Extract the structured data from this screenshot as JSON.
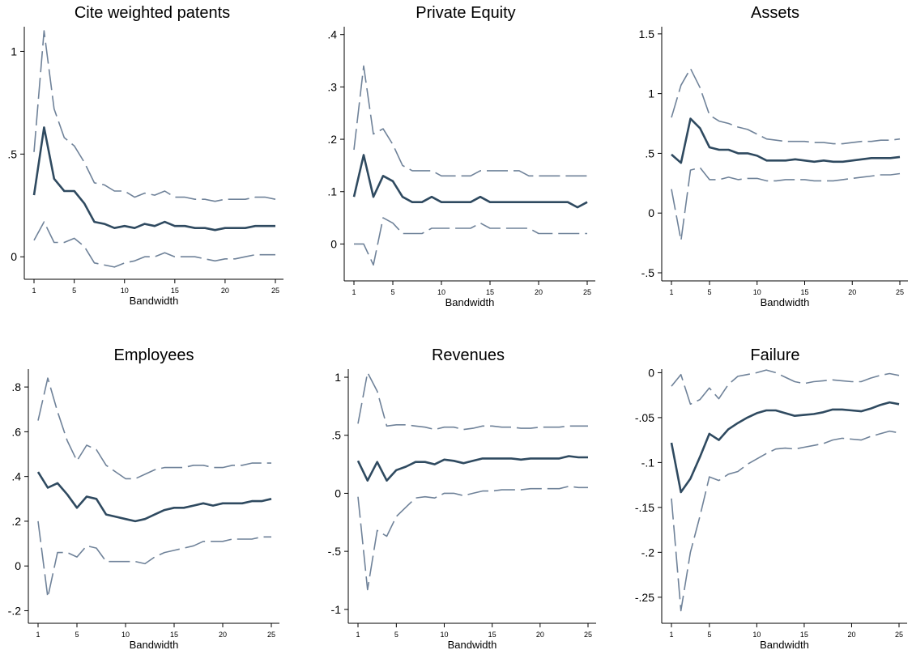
{
  "colors": {
    "estimate": "#2f4a60",
    "ci": "#6f8299",
    "axis": "#000000"
  },
  "chart_data": [
    {
      "type": "line",
      "title": "Cite weighted patents",
      "xlabel": "Bandwidth",
      "ylabel": "",
      "xlim": [
        1,
        25
      ],
      "xticks": [
        "1",
        "5",
        "10",
        "15",
        "20",
        "25"
      ],
      "ylim": [
        -0.07,
        1.12
      ],
      "yticks": [
        {
          "v": 0,
          "label": "0"
        },
        {
          "v": 0.5,
          "label": ".5"
        },
        {
          "v": 1,
          "label": "1"
        }
      ],
      "x": [
        1,
        2,
        3,
        4,
        5,
        6,
        7,
        8,
        9,
        10,
        11,
        12,
        13,
        14,
        15,
        16,
        17,
        18,
        19,
        20,
        21,
        22,
        23,
        24,
        25
      ],
      "series": [
        {
          "role": "upper",
          "values": [
            0.51,
            1.1,
            0.72,
            0.58,
            0.54,
            0.46,
            0.36,
            0.35,
            0.32,
            0.32,
            0.29,
            0.31,
            0.3,
            0.32,
            0.29,
            0.29,
            0.28,
            0.28,
            0.27,
            0.28,
            0.28,
            0.28,
            0.29,
            0.29,
            0.28
          ]
        },
        {
          "role": "estimate",
          "values": [
            0.3,
            0.63,
            0.38,
            0.32,
            0.32,
            0.26,
            0.17,
            0.16,
            0.14,
            0.15,
            0.14,
            0.16,
            0.15,
            0.17,
            0.15,
            0.15,
            0.14,
            0.14,
            0.13,
            0.14,
            0.14,
            0.14,
            0.15,
            0.15,
            0.15
          ]
        },
        {
          "role": "lower",
          "values": [
            0.08,
            0.17,
            0.07,
            0.07,
            0.09,
            0.05,
            -0.03,
            -0.04,
            -0.05,
            -0.03,
            -0.02,
            0,
            0,
            0.02,
            0,
            0,
            0,
            -0.01,
            -0.02,
            -0.01,
            -0.01,
            0,
            0.01,
            0.01,
            0.01
          ]
        }
      ]
    },
    {
      "type": "line",
      "title": "Private Equity",
      "xlabel": "Bandwidth",
      "ylabel": "",
      "xlim": [
        1,
        25
      ],
      "xticks": [
        "1",
        "5",
        "10",
        "15",
        "20",
        "25"
      ],
      "ylim": [
        -0.055,
        0.415
      ],
      "yticks": [
        {
          "v": 0,
          "label": "0"
        },
        {
          "v": 0.1,
          "label": ".1"
        },
        {
          "v": 0.2,
          "label": ".2"
        },
        {
          "v": 0.3,
          "label": ".3"
        },
        {
          "v": 0.4,
          "label": ".4"
        }
      ],
      "x": [
        1,
        2,
        3,
        4,
        5,
        6,
        7,
        8,
        9,
        10,
        11,
        12,
        13,
        14,
        15,
        16,
        17,
        18,
        19,
        20,
        21,
        22,
        23,
        24,
        25
      ],
      "series": [
        {
          "role": "upper",
          "values": [
            0.18,
            0.34,
            0.21,
            0.22,
            0.19,
            0.15,
            0.14,
            0.14,
            0.14,
            0.13,
            0.13,
            0.13,
            0.13,
            0.14,
            0.14,
            0.14,
            0.14,
            0.14,
            0.13,
            0.13,
            0.13,
            0.13,
            0.13,
            0.13,
            0.13
          ]
        },
        {
          "role": "estimate",
          "values": [
            0.09,
            0.17,
            0.09,
            0.13,
            0.12,
            0.09,
            0.08,
            0.08,
            0.09,
            0.08,
            0.08,
            0.08,
            0.08,
            0.09,
            0.08,
            0.08,
            0.08,
            0.08,
            0.08,
            0.08,
            0.08,
            0.08,
            0.08,
            0.07,
            0.08
          ]
        },
        {
          "role": "lower",
          "values": [
            0,
            0,
            -0.04,
            0.05,
            0.04,
            0.02,
            0.02,
            0.02,
            0.03,
            0.03,
            0.03,
            0.03,
            0.03,
            0.04,
            0.03,
            0.03,
            0.03,
            0.03,
            0.03,
            0.02,
            0.02,
            0.02,
            0.02,
            0.02,
            0.02
          ]
        }
      ]
    },
    {
      "type": "line",
      "title": "Assets",
      "xlabel": "Bandwidth",
      "ylabel": "",
      "xlim": [
        1,
        25
      ],
      "xticks": [
        "1",
        "5",
        "10",
        "15",
        "20",
        "25"
      ],
      "ylim": [
        -0.5,
        1.56
      ],
      "yticks": [
        {
          "v": -0.5,
          "label": "-.5"
        },
        {
          "v": 0,
          "label": "0"
        },
        {
          "v": 0.5,
          "label": ".5"
        },
        {
          "v": 1,
          "label": "1"
        },
        {
          "v": 1.5,
          "label": "1.5"
        }
      ],
      "x": [
        1,
        2,
        3,
        4,
        5,
        6,
        7,
        8,
        9,
        10,
        11,
        12,
        13,
        14,
        15,
        16,
        17,
        18,
        19,
        20,
        21,
        22,
        23,
        24,
        25
      ],
      "series": [
        {
          "role": "upper",
          "values": [
            0.8,
            1.07,
            1.21,
            1.05,
            0.82,
            0.77,
            0.75,
            0.72,
            0.7,
            0.66,
            0.62,
            0.61,
            0.6,
            0.6,
            0.6,
            0.59,
            0.59,
            0.58,
            0.58,
            0.59,
            0.6,
            0.6,
            0.61,
            0.61,
            0.62
          ]
        },
        {
          "role": "estimate",
          "values": [
            0.49,
            0.42,
            0.79,
            0.71,
            0.55,
            0.53,
            0.53,
            0.5,
            0.5,
            0.48,
            0.44,
            0.44,
            0.44,
            0.45,
            0.44,
            0.43,
            0.44,
            0.43,
            0.43,
            0.44,
            0.45,
            0.46,
            0.46,
            0.46,
            0.47
          ]
        },
        {
          "role": "lower",
          "values": [
            0.2,
            -0.23,
            0.36,
            0.38,
            0.28,
            0.28,
            0.3,
            0.28,
            0.29,
            0.29,
            0.27,
            0.27,
            0.28,
            0.28,
            0.28,
            0.27,
            0.27,
            0.27,
            0.28,
            0.29,
            0.3,
            0.31,
            0.32,
            0.32,
            0.33
          ]
        }
      ]
    },
    {
      "type": "line",
      "title": "Employees",
      "xlabel": "Bandwidth",
      "ylabel": "",
      "xlim": [
        1,
        25
      ],
      "xticks": [
        "1",
        "5",
        "10",
        "15",
        "20",
        "25"
      ],
      "ylim": [
        -0.22,
        0.88
      ],
      "yticks": [
        {
          "v": -0.2,
          "label": "-.2"
        },
        {
          "v": 0,
          "label": "0"
        },
        {
          "v": 0.2,
          "label": ".2"
        },
        {
          "v": 0.4,
          "label": ".4"
        },
        {
          "v": 0.6,
          "label": ".6"
        },
        {
          "v": 0.8,
          "label": ".8"
        }
      ],
      "x": [
        1,
        2,
        3,
        4,
        5,
        6,
        7,
        8,
        9,
        10,
        11,
        12,
        13,
        14,
        15,
        16,
        17,
        18,
        19,
        20,
        21,
        22,
        23,
        24,
        25
      ],
      "series": [
        {
          "role": "upper",
          "values": [
            0.65,
            0.84,
            0.69,
            0.56,
            0.47,
            0.54,
            0.52,
            0.45,
            0.42,
            0.39,
            0.39,
            0.41,
            0.43,
            0.44,
            0.44,
            0.44,
            0.45,
            0.45,
            0.44,
            0.44,
            0.45,
            0.45,
            0.46,
            0.46,
            0.46
          ]
        },
        {
          "role": "estimate",
          "values": [
            0.42,
            0.35,
            0.37,
            0.32,
            0.26,
            0.31,
            0.3,
            0.23,
            0.22,
            0.21,
            0.2,
            0.21,
            0.23,
            0.25,
            0.26,
            0.26,
            0.27,
            0.28,
            0.27,
            0.28,
            0.28,
            0.28,
            0.29,
            0.29,
            0.3
          ]
        },
        {
          "role": "lower",
          "values": [
            0.2,
            -0.14,
            0.06,
            0.06,
            0.04,
            0.09,
            0.08,
            0.02,
            0.02,
            0.02,
            0.02,
            0.01,
            0.04,
            0.06,
            0.07,
            0.08,
            0.09,
            0.11,
            0.11,
            0.11,
            0.12,
            0.12,
            0.12,
            0.13,
            0.13
          ]
        }
      ]
    },
    {
      "type": "line",
      "title": "Revenues",
      "xlabel": "Bandwidth",
      "ylabel": "",
      "xlim": [
        1,
        25
      ],
      "xticks": [
        "1",
        "5",
        "10",
        "15",
        "20",
        "25"
      ],
      "ylim": [
        -1.05,
        1.07
      ],
      "yticks": [
        {
          "v": -1,
          "label": "-1"
        },
        {
          "v": -0.5,
          "label": "-.5"
        },
        {
          "v": 0,
          "label": "0"
        },
        {
          "v": 0.5,
          "label": ".5"
        },
        {
          "v": 1,
          "label": "1"
        }
      ],
      "x": [
        1,
        2,
        3,
        4,
        5,
        6,
        7,
        8,
        9,
        10,
        11,
        12,
        13,
        14,
        15,
        16,
        17,
        18,
        19,
        20,
        21,
        22,
        23,
        24,
        25
      ],
      "series": [
        {
          "role": "upper",
          "values": [
            0.6,
            1.04,
            0.88,
            0.58,
            0.59,
            0.59,
            0.58,
            0.57,
            0.55,
            0.57,
            0.57,
            0.55,
            0.56,
            0.58,
            0.58,
            0.57,
            0.57,
            0.56,
            0.56,
            0.57,
            0.57,
            0.57,
            0.58,
            0.58,
            0.58
          ]
        },
        {
          "role": "estimate",
          "values": [
            0.28,
            0.11,
            0.27,
            0.11,
            0.2,
            0.23,
            0.27,
            0.27,
            0.25,
            0.29,
            0.28,
            0.26,
            0.28,
            0.3,
            0.3,
            0.3,
            0.3,
            0.29,
            0.3,
            0.3,
            0.3,
            0.3,
            0.32,
            0.31,
            0.31
          ]
        },
        {
          "role": "lower",
          "values": [
            -0.03,
            -0.83,
            -0.32,
            -0.37,
            -0.2,
            -0.12,
            -0.04,
            -0.03,
            -0.04,
            0,
            0,
            -0.02,
            0,
            0.02,
            0.02,
            0.03,
            0.03,
            0.03,
            0.04,
            0.04,
            0.04,
            0.04,
            0.06,
            0.05,
            0.05
          ]
        }
      ]
    },
    {
      "type": "line",
      "title": "Failure",
      "xlabel": "Bandwidth",
      "ylabel": "",
      "xlim": [
        1,
        25
      ],
      "xticks": [
        "1",
        "5",
        "10",
        "15",
        "20",
        "25"
      ],
      "ylim": [
        -0.27,
        0.004
      ],
      "yticks": [
        {
          "v": -0.25,
          "label": "-.25"
        },
        {
          "v": -0.2,
          "label": "-.2"
        },
        {
          "v": -0.15,
          "label": "-.15"
        },
        {
          "v": -0.1,
          "label": "-.1"
        },
        {
          "v": -0.05,
          "label": "-.05"
        },
        {
          "v": 0,
          "label": "0"
        }
      ],
      "x": [
        1,
        2,
        3,
        4,
        5,
        6,
        7,
        8,
        9,
        10,
        11,
        12,
        13,
        14,
        15,
        16,
        17,
        18,
        19,
        20,
        21,
        22,
        23,
        24,
        25
      ],
      "series": [
        {
          "role": "upper",
          "values": [
            -0.015,
            -0.002,
            -0.035,
            -0.03,
            -0.017,
            -0.029,
            -0.013,
            -0.004,
            -0.002,
            0,
            0.003,
            0,
            -0.005,
            -0.01,
            -0.012,
            -0.01,
            -0.009,
            -0.008,
            -0.009,
            -0.01,
            -0.01,
            -0.006,
            -0.003,
            -0.001,
            -0.003
          ]
        },
        {
          "role": "estimate",
          "values": [
            -0.078,
            -0.133,
            -0.118,
            -0.094,
            -0.068,
            -0.075,
            -0.063,
            -0.056,
            -0.05,
            -0.045,
            -0.042,
            -0.042,
            -0.045,
            -0.048,
            -0.047,
            -0.046,
            -0.044,
            -0.041,
            -0.041,
            -0.042,
            -0.043,
            -0.04,
            -0.036,
            -0.033,
            -0.035
          ]
        },
        {
          "role": "lower",
          "values": [
            -0.14,
            -0.265,
            -0.2,
            -0.16,
            -0.116,
            -0.12,
            -0.113,
            -0.11,
            -0.102,
            -0.096,
            -0.09,
            -0.085,
            -0.084,
            -0.085,
            -0.083,
            -0.081,
            -0.079,
            -0.075,
            -0.073,
            -0.074,
            -0.075,
            -0.071,
            -0.068,
            -0.065,
            -0.067
          ]
        }
      ]
    }
  ]
}
